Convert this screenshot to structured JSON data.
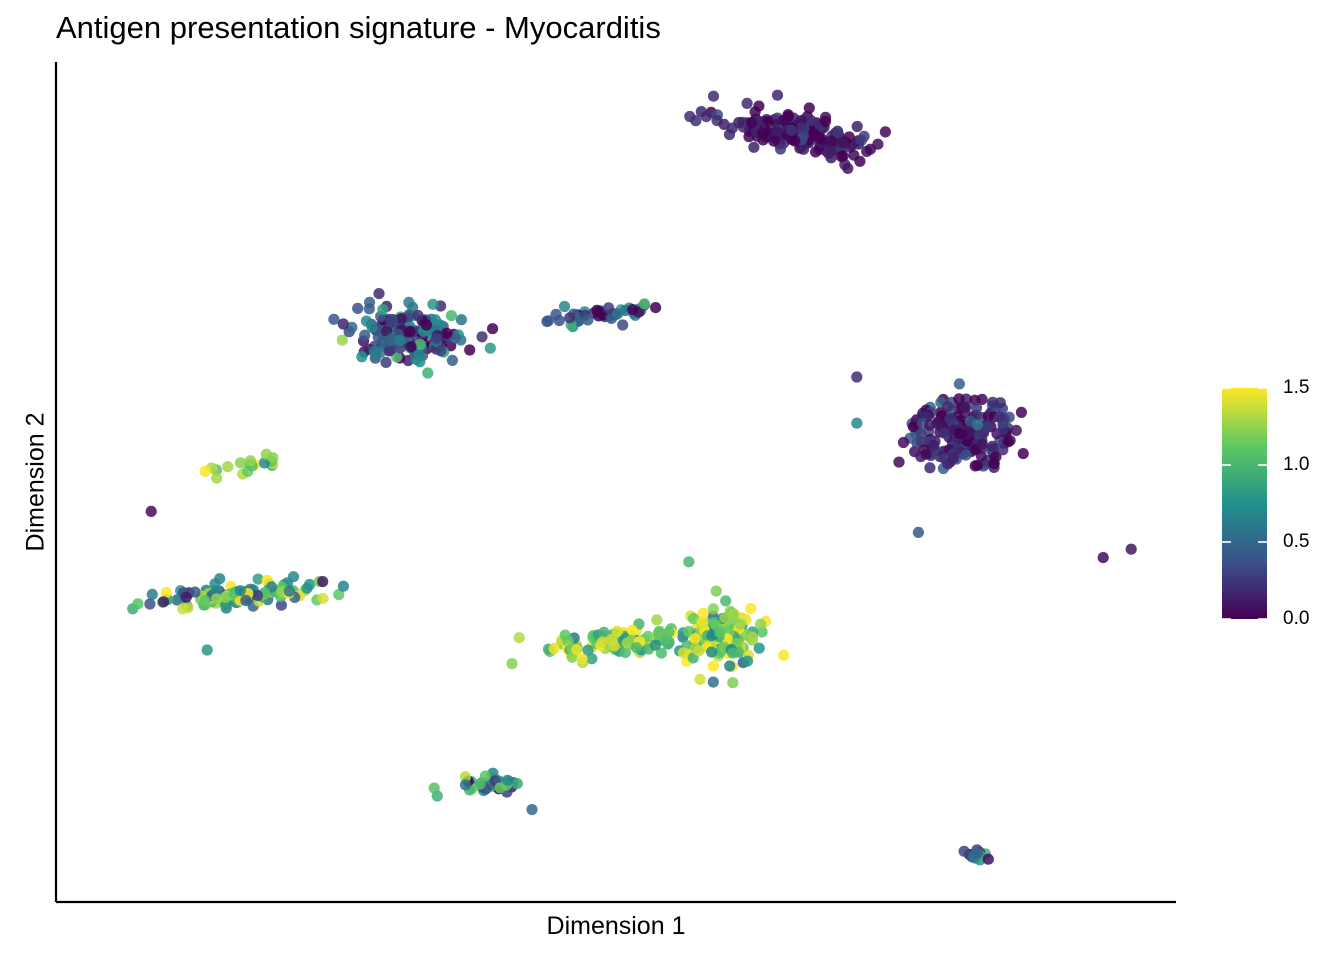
{
  "chart_data": {
    "type": "scatter",
    "title": "Antigen presentation signature - Myocarditis",
    "xlabel": "Dimension 1",
    "ylabel": "Dimension 2",
    "xlim": [
      0,
      100
    ],
    "ylim": [
      0,
      100
    ],
    "grid": false,
    "colorbar": {
      "placement": "right",
      "palette": "viridis",
      "colors": [
        "#440154",
        "#3b528b",
        "#21918c",
        "#5ec962",
        "#fde725"
      ],
      "range": [
        0,
        1.5
      ],
      "ticks": [
        "0.0",
        "0.5",
        "1.0",
        "1.5"
      ]
    },
    "clusters": [
      {
        "cx": 66.5,
        "cy": 91.5,
        "sx": 6.5,
        "sy": 2.2,
        "tilt": -0.25,
        "n": 180,
        "mean": 0.08,
        "sd": 0.12
      },
      {
        "cx": 31.5,
        "cy": 67.5,
        "sx": 4.5,
        "sy": 3.2,
        "tilt": 0.0,
        "n": 170,
        "mean": 0.45,
        "sd": 0.32
      },
      {
        "cx": 49.0,
        "cy": 70.0,
        "sx": 5.0,
        "sy": 1.0,
        "tilt": 0.2,
        "n": 45,
        "mean": 0.35,
        "sd": 0.35
      },
      {
        "cx": 81.0,
        "cy": 56.0,
        "sx": 4.2,
        "sy": 4.0,
        "tilt": 0.0,
        "n": 190,
        "mean": 0.15,
        "sd": 0.16
      },
      {
        "cx": 16.5,
        "cy": 52.0,
        "sx": 4.0,
        "sy": 1.1,
        "tilt": 0.15,
        "n": 18,
        "mean": 1.25,
        "sd": 0.3
      },
      {
        "cx": 16.5,
        "cy": 36.5,
        "sx": 6.5,
        "sy": 1.3,
        "tilt": 0.05,
        "n": 120,
        "mean": 0.9,
        "sd": 0.35
      },
      {
        "cx": 50.0,
        "cy": 31.0,
        "sx": 7.0,
        "sy": 1.6,
        "tilt": 0.12,
        "n": 110,
        "mean": 1.25,
        "sd": 0.3
      },
      {
        "cx": 59.5,
        "cy": 31.5,
        "sx": 3.0,
        "sy": 3.2,
        "tilt": 0.0,
        "n": 130,
        "mean": 1.15,
        "sd": 0.35
      },
      {
        "cx": 39.0,
        "cy": 14.0,
        "sx": 2.3,
        "sy": 0.9,
        "tilt": 0.0,
        "n": 45,
        "mean": 1.0,
        "sd": 0.4
      },
      {
        "cx": 82.0,
        "cy": 5.5,
        "sx": 1.0,
        "sy": 0.7,
        "tilt": -0.6,
        "n": 14,
        "mean": 0.35,
        "sd": 0.2
      }
    ],
    "points": [
      {
        "x": 8.5,
        "y": 46.5,
        "v": 0.05
      },
      {
        "x": 71.5,
        "y": 62.5,
        "v": 0.2
      },
      {
        "x": 71.5,
        "y": 57.0,
        "v": 0.7
      },
      {
        "x": 93.5,
        "y": 41.0,
        "v": 0.05
      },
      {
        "x": 96.0,
        "y": 42.0,
        "v": 0.1
      },
      {
        "x": 13.5,
        "y": 30.0,
        "v": 0.8
      },
      {
        "x": 42.5,
        "y": 11.0,
        "v": 0.5
      },
      {
        "x": 56.5,
        "y": 40.5,
        "v": 1.0
      },
      {
        "x": 57.5,
        "y": 26.5,
        "v": 1.4
      },
      {
        "x": 77.0,
        "y": 44.0,
        "v": 0.4
      }
    ]
  }
}
